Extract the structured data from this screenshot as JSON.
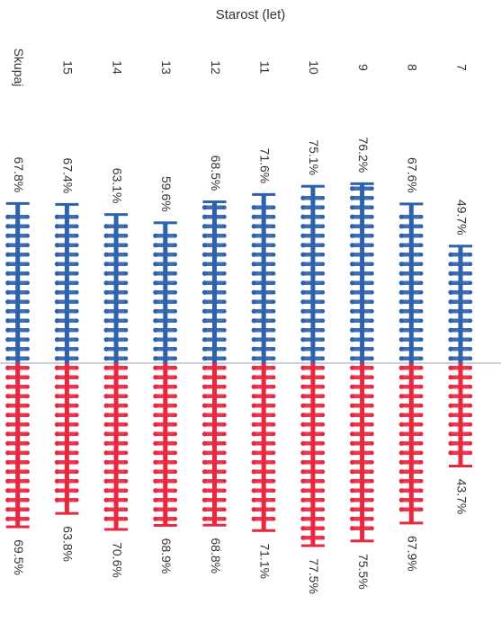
{
  "chart_data": {
    "type": "bar",
    "orientation": "rotated-90",
    "title": "Starost (let)",
    "xlabel": "",
    "ylabel": "",
    "categories": [
      "7",
      "8",
      "9",
      "10",
      "11",
      "12",
      "13",
      "14",
      "15",
      "Skupaj"
    ],
    "series": [
      {
        "values": [
          49.7,
          67.6,
          76.2,
          75.1,
          71.6,
          68.5,
          59.6,
          63.1,
          67.4,
          67.8
        ],
        "labels": [
          "49.7%",
          "67.6%",
          "76.2%",
          "75.1%",
          "71.6%",
          "68.5%",
          "59.6%",
          "63.1%",
          "67.4%",
          "67.8%"
        ],
        "color": "#2f62ad",
        "direction": "up"
      },
      {
        "values": [
          43.7,
          67.9,
          75.5,
          77.5,
          71.1,
          68.8,
          68.9,
          70.6,
          63.8,
          69.5
        ],
        "labels": [
          "43.7%",
          "67.9%",
          "75.5%",
          "77.5%",
          "71.1%",
          "68.8%",
          "68.9%",
          "70.6%",
          "63.8%",
          "69.5%"
        ],
        "color": "#e8283f",
        "direction": "down"
      }
    ],
    "ylim": [
      0,
      100
    ],
    "grid": false,
    "legend": "none"
  }
}
